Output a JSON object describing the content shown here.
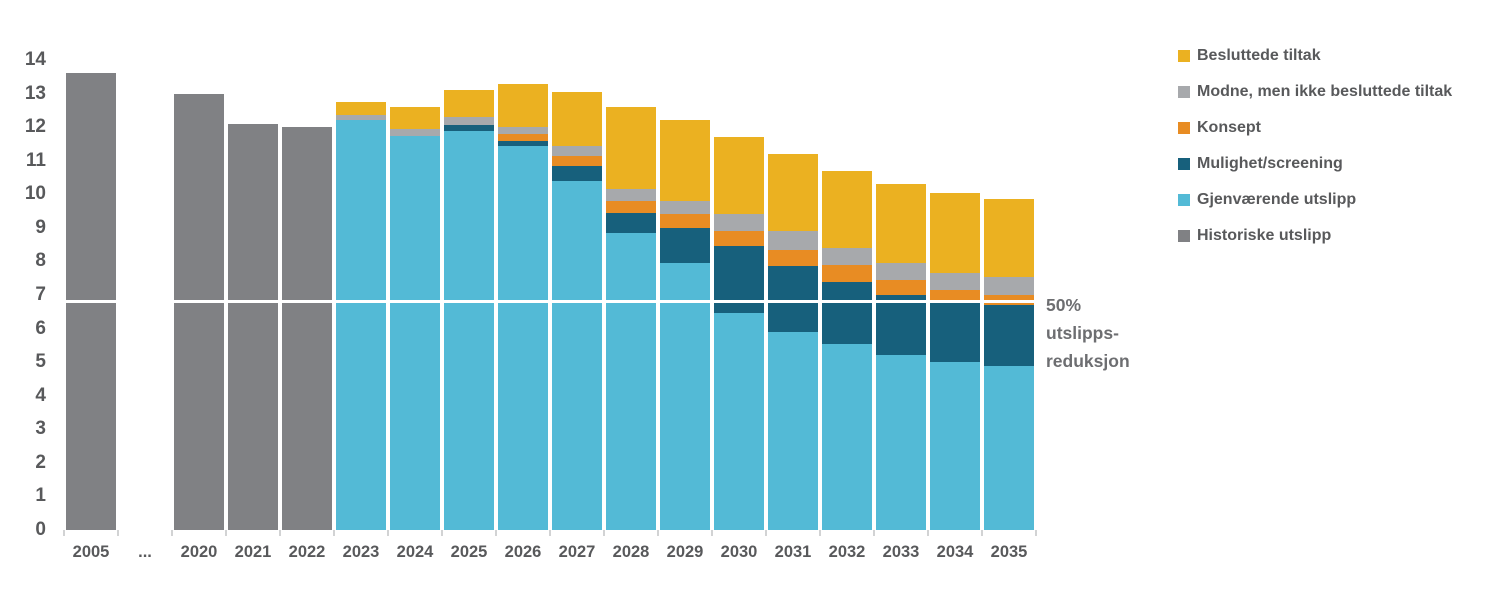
{
  "chart_data": {
    "type": "bar",
    "stacked": true,
    "title": "",
    "xlabel": "",
    "ylabel": "",
    "ylim": [
      0,
      14
    ],
    "ytick_step": 1,
    "grid": false,
    "legend_position": "right",
    "categories": [
      "2005",
      "...",
      "2020",
      "2021",
      "2022",
      "2023",
      "2024",
      "2025",
      "2026",
      "2027",
      "2028",
      "2029",
      "2030",
      "2031",
      "2032",
      "2033",
      "2034",
      "2035"
    ],
    "series": [
      {
        "name": "Historiske utslipp",
        "color": "#808184",
        "values": [
          13.6,
          0,
          13.0,
          12.1,
          12.0,
          0,
          0,
          0,
          0,
          0,
          0,
          0,
          0,
          0,
          0,
          0,
          0,
          0
        ]
      },
      {
        "name": "Gjenværende utslipp",
        "color": "#53BAD6",
        "values": [
          0,
          0,
          0,
          0,
          0,
          12.2,
          11.75,
          11.9,
          11.45,
          10.4,
          8.85,
          7.95,
          6.45,
          5.9,
          5.55,
          5.2,
          5.0,
          4.9
        ]
      },
      {
        "name": "Mulighet/screening",
        "color": "#17607C",
        "values": [
          0,
          0,
          0,
          0,
          0,
          0,
          0,
          0.15,
          0.15,
          0.45,
          0.6,
          1.05,
          2.0,
          1.95,
          1.85,
          1.8,
          1.85,
          1.8
        ]
      },
      {
        "name": "Konsept",
        "color": "#E88C23",
        "values": [
          0,
          0,
          0,
          0,
          0,
          0,
          0,
          0,
          0.2,
          0.3,
          0.35,
          0.4,
          0.45,
          0.5,
          0.5,
          0.45,
          0.3,
          0.3
        ]
      },
      {
        "name": "Modne, men ikke besluttede tiltak",
        "color": "#A7A9AC",
        "values": [
          0,
          0,
          0,
          0,
          0,
          0.15,
          0.2,
          0.25,
          0.2,
          0.3,
          0.35,
          0.4,
          0.5,
          0.55,
          0.5,
          0.5,
          0.5,
          0.55
        ]
      },
      {
        "name": "Besluttede tiltak",
        "color": "#EBB121",
        "values": [
          0,
          0,
          0,
          0,
          0,
          0.4,
          0.65,
          0.8,
          1.3,
          1.6,
          2.45,
          2.4,
          2.3,
          2.3,
          2.3,
          2.35,
          2.4,
          2.3
        ]
      }
    ],
    "legend_order": [
      "Besluttede tiltak",
      "Modne, men ikke besluttede tiltak",
      "Konsept",
      "Mulighet/screening",
      "Gjenværende utslipp",
      "Historiske utslipp"
    ],
    "reference_line": {
      "value": 6.8,
      "color": "#ffffff",
      "label": "50% utslipps-reduksjon"
    }
  },
  "annotation": {
    "lines": [
      "50%",
      "utslipps-",
      "reduksjon"
    ]
  },
  "colors": {
    "axis_text": "#58595B",
    "annotation_text": "#6D6E71",
    "background": "#ffffff"
  }
}
